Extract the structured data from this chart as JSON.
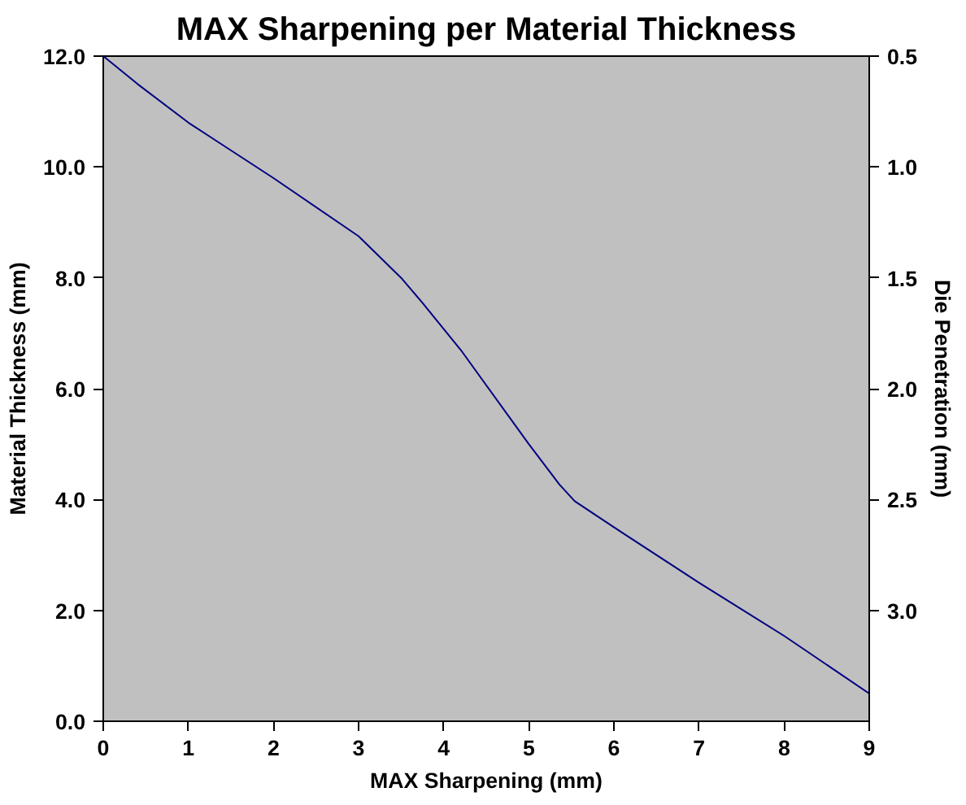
{
  "chart_data": {
    "type": "line",
    "title": "MAX Sharpening per Material Thickness",
    "xlabel": "MAX Sharpening (mm)",
    "ylabel": "Material Thickness (mm)",
    "y2label": "Die Penetration (mm)",
    "x": [
      0,
      0.4,
      1,
      2,
      3,
      3.5,
      3.75,
      4.2,
      5,
      5.36,
      5.54,
      6,
      7,
      8,
      9
    ],
    "series": [
      {
        "color": "#000080",
        "values": [
          12,
          11.5,
          10.8,
          9.8,
          8.75,
          8.0,
          7.55,
          6.7,
          5.0,
          4.27,
          3.97,
          3.5,
          2.5,
          1.54,
          0.5
        ]
      }
    ],
    "xlim": [
      0,
      9
    ],
    "xticks": [
      0,
      1,
      2,
      3,
      4,
      5,
      6,
      7,
      8,
      9
    ],
    "ylim": [
      0,
      12
    ],
    "yticks": [
      {
        "value": 0,
        "label": "0.0"
      },
      {
        "value": 2,
        "label": "2.0"
      },
      {
        "value": 4,
        "label": "4.0"
      },
      {
        "value": 6,
        "label": "6.0"
      },
      {
        "value": 8,
        "label": "8.0"
      },
      {
        "value": 10,
        "label": "10.0"
      },
      {
        "value": 12,
        "label": "12.0"
      }
    ],
    "y2lim": [
      3.5,
      0.5
    ],
    "y2ticks": [
      0.5,
      {
        "value": 1,
        "label": "1.0"
      },
      1.5,
      {
        "value": 2,
        "label": "2.0"
      },
      2.5,
      {
        "value": 3,
        "label": "3.0"
      }
    ],
    "grid": false,
    "marker": "none",
    "line_style": "solid"
  }
}
